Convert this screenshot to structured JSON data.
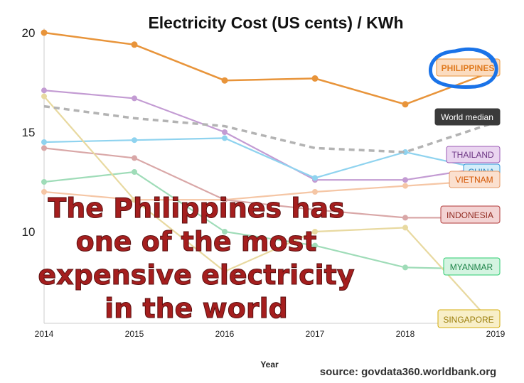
{
  "chart_data": {
    "type": "line",
    "title": "Electricity Cost (US cents) / KWh",
    "xlabel": "Year",
    "ylabel": "",
    "x": [
      2014,
      2015,
      2016,
      2017,
      2018,
      2019
    ],
    "x_tick_labels": [
      "2014",
      "2015",
      "2016",
      "2017",
      "2018",
      "2019"
    ],
    "y_tick_labels": [
      "10",
      "15",
      "20"
    ],
    "y_ticks": [
      10,
      15,
      20
    ],
    "ylim": [
      5.2,
      20.3
    ],
    "grid": false,
    "series": [
      {
        "name": "THAILAND",
        "color": "#c39bd3",
        "values": [
          17.1,
          16.7,
          15.0,
          12.6,
          12.6,
          13.3
        ]
      },
      {
        "name": "CHINA",
        "color": "#8fd3ef",
        "values": [
          14.5,
          14.6,
          14.7,
          12.7,
          14.0,
          13.0
        ]
      },
      {
        "name": "VIETNAM",
        "color": "#f5c6a5",
        "values": [
          12.0,
          11.6,
          11.6,
          12.0,
          12.3,
          12.6
        ]
      },
      {
        "name": "INDONESIA",
        "color": "#d9a7a7",
        "values": [
          14.2,
          13.7,
          11.6,
          11.1,
          10.7,
          10.7
        ]
      },
      {
        "name": "MYANMAR",
        "color": "#9fdcb8",
        "values": [
          12.5,
          13.0,
          10.0,
          9.3,
          8.2,
          8.1
        ]
      },
      {
        "name": "SINGAPORE",
        "color": "#e8d9a0",
        "values": [
          16.8,
          11.6,
          8.0,
          10.0,
          10.2,
          5.2
        ]
      },
      {
        "name": "World median",
        "color": "#b3b3b3",
        "dashed": true,
        "values": [
          16.3,
          15.7,
          15.3,
          14.2,
          14.0,
          15.5
        ]
      },
      {
        "name": "PHILIPPINES",
        "color": "#e8943a",
        "values": [
          20.0,
          19.4,
          17.6,
          17.7,
          16.4,
          18.1
        ]
      }
    ],
    "labels": [
      {
        "text": "PHILIPPINES",
        "fill": "#fbdcc0",
        "stroke": "#e8943a",
        "color": "#e07b1f"
      },
      {
        "text": "World median",
        "fill": "#3a3a3a",
        "stroke": "#3a3a3a",
        "color": "#ffffff"
      },
      {
        "text": "THAILAND",
        "fill": "#ead5f0",
        "stroke": "#9b59b6",
        "color": "#6c3483"
      },
      {
        "text": "CHINA",
        "fill": "#d4eefa",
        "stroke": "#3498db",
        "color": "#2e86c1"
      },
      {
        "text": "VIETNAM",
        "fill": "#fbe0cf",
        "stroke": "#e59866",
        "color": "#d35400"
      },
      {
        "text": "INDONESIA",
        "fill": "#f3d3d3",
        "stroke": "#b03a3a",
        "color": "#922b21"
      },
      {
        "text": "MYANMAR",
        "fill": "#d4f4e1",
        "stroke": "#2ecc71",
        "color": "#1e8449"
      },
      {
        "text": "SINGAPORE",
        "fill": "#f8efc8",
        "stroke": "#d4ac0d",
        "color": "#9a7d0a"
      }
    ],
    "annotations": [
      "The Philippines has",
      "one of the most",
      "expensive electricity",
      "in the world"
    ],
    "highlight": {
      "target": "PHILIPPINES",
      "shape": "hand-drawn circle",
      "color": "#1a73e8"
    },
    "source": "source: govdata360.worldbank.org"
  }
}
